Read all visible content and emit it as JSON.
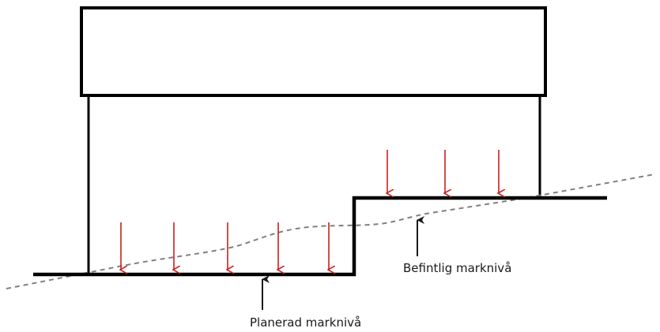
{
  "labels": {
    "existing_ground": "Befintlig marknivå",
    "planned_ground": "Planerad marknivå"
  },
  "colors": {
    "structure": "#000000",
    "load_arrows": "#cc1f1f",
    "existing_ground_line": "#808080",
    "pointer_arrows": "#1a1a1a"
  },
  "icons": {
    "load": "down-arrow",
    "pointer": "up-arrow"
  }
}
